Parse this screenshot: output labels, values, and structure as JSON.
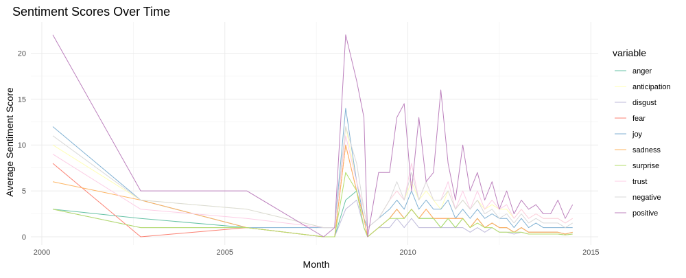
{
  "chart_data": {
    "type": "line",
    "title": "Sentiment Scores Over Time",
    "xlabel": "Month",
    "ylabel": "Average Sentiment Score",
    "xlim": [
      1999.7,
      2015.2
    ],
    "ylim": [
      -0.9,
      23.4
    ],
    "x_ticks": [
      2000,
      2005,
      2010,
      2015
    ],
    "y_ticks": [
      0,
      5,
      10,
      15,
      20
    ],
    "grid": true,
    "legend": {
      "title": "variable",
      "position": "right"
    },
    "x": [
      2000.3,
      2002.7,
      2005.6,
      2007.7,
      2008.0,
      2008.3,
      2008.6,
      2008.8,
      2008.9,
      2009.2,
      2009.5,
      2009.7,
      2009.9,
      2010.1,
      2010.3,
      2010.5,
      2010.7,
      2010.9,
      2011.1,
      2011.3,
      2011.5,
      2011.7,
      2011.9,
      2012.1,
      2012.3,
      2012.5,
      2012.7,
      2012.9,
      2013.1,
      2013.3,
      2013.5,
      2013.7,
      2013.9,
      2014.1,
      2014.3,
      2014.5
    ],
    "series": [
      {
        "name": "anger",
        "color": "#66c2a5",
        "values": [
          3,
          2,
          1,
          0,
          0,
          4,
          5,
          1,
          0,
          1,
          2,
          3,
          2,
          3,
          2,
          2,
          2,
          1,
          2,
          1,
          2,
          1,
          2,
          1,
          1.5,
          1,
          1,
          0.5,
          1,
          0.5,
          0.5,
          0.5,
          0.5,
          0.5,
          0.3,
          0.5
        ]
      },
      {
        "name": "anticipation",
        "color": "#ffffb3",
        "values": [
          10,
          4,
          3,
          1,
          1,
          12,
          6,
          3,
          1,
          2,
          4,
          5,
          4,
          6,
          4,
          5,
          4,
          3,
          5,
          3,
          4,
          3,
          4,
          3,
          3.5,
          3,
          3,
          2,
          3,
          2,
          2.5,
          2,
          2,
          2,
          1.5,
          2
        ]
      },
      {
        "name": "disgust",
        "color": "#bebada",
        "values": [
          3,
          1,
          1,
          0,
          0,
          3,
          4,
          1,
          0,
          1,
          1,
          2,
          1,
          2,
          1,
          1,
          1,
          1,
          1,
          1,
          1,
          0.5,
          1,
          0.5,
          1,
          0.5,
          0.5,
          0.3,
          0.5,
          0.3,
          0.3,
          0.3,
          0.3,
          0.3,
          0.2,
          0.3
        ]
      },
      {
        "name": "fear",
        "color": "#fb8072",
        "values": [
          8,
          0,
          1,
          0,
          0,
          10,
          5,
          2,
          0,
          1,
          2,
          3,
          2,
          3,
          2,
          3,
          2,
          2,
          2,
          2,
          2,
          1,
          2,
          1,
          1.5,
          1,
          1,
          0.5,
          1,
          0.5,
          0.5,
          0.5,
          0.5,
          0.5,
          0.3,
          0.5
        ]
      },
      {
        "name": "joy",
        "color": "#80b1d3",
        "values": [
          12,
          4,
          1,
          1,
          1,
          14,
          6,
          2,
          1,
          2,
          3,
          4,
          3,
          5,
          3,
          4,
          3,
          3,
          4,
          2,
          3,
          2,
          3,
          2,
          2.5,
          2,
          2,
          1,
          2,
          1,
          1.5,
          1,
          1,
          1,
          1,
          1
        ]
      },
      {
        "name": "sadness",
        "color": "#fdb462",
        "values": [
          6,
          4,
          1,
          0,
          0,
          10,
          5,
          2,
          0,
          1,
          2,
          3,
          2,
          3,
          2,
          3,
          2,
          2,
          2,
          2,
          2,
          1,
          2,
          1,
          1.5,
          1,
          1,
          0.5,
          1,
          0.5,
          0.5,
          0.5,
          0.5,
          0.5,
          0.3,
          0.5
        ]
      },
      {
        "name": "surprise",
        "color": "#b3de69",
        "values": [
          3,
          1,
          1,
          0,
          0,
          7,
          5,
          1,
          0,
          1,
          2,
          2,
          2,
          3,
          2,
          2,
          2,
          1,
          2,
          1,
          2,
          1,
          1.5,
          1,
          1,
          0.5,
          0.5,
          0.5,
          0.5,
          0.3,
          0.3,
          0.3,
          0.3,
          0.3,
          0.2,
          0.3
        ]
      },
      {
        "name": "trust",
        "color": "#fccde5",
        "values": [
          9,
          3,
          2,
          1,
          1,
          11,
          6,
          3,
          1,
          2,
          4,
          5,
          4,
          8,
          4,
          6,
          4,
          4,
          6,
          3,
          5,
          3,
          5,
          3,
          4,
          3,
          3.5,
          2,
          3,
          2,
          2.5,
          2,
          2,
          2,
          1.5,
          2
        ]
      },
      {
        "name": "negative",
        "color": "#d9d9d9",
        "values": [
          11,
          4,
          3,
          1,
          1,
          12,
          8,
          3,
          1,
          2,
          4,
          6,
          4,
          7,
          4,
          6,
          4,
          4,
          5,
          3,
          4,
          3,
          4,
          2.5,
          3,
          2,
          2.5,
          1.5,
          2.5,
          1.5,
          2,
          1.5,
          1.5,
          1.5,
          1,
          1.5
        ]
      },
      {
        "name": "positive",
        "color": "#bc80bd",
        "values": [
          22,
          5,
          5,
          0,
          1,
          22,
          17,
          13,
          0,
          7,
          7,
          13,
          14.5,
          5,
          13,
          6,
          7,
          16,
          8,
          4,
          10,
          5,
          7,
          4,
          6,
          3,
          5,
          2.5,
          4,
          3,
          3.5,
          2.5,
          2.5,
          4,
          2,
          3.5
        ]
      }
    ]
  }
}
